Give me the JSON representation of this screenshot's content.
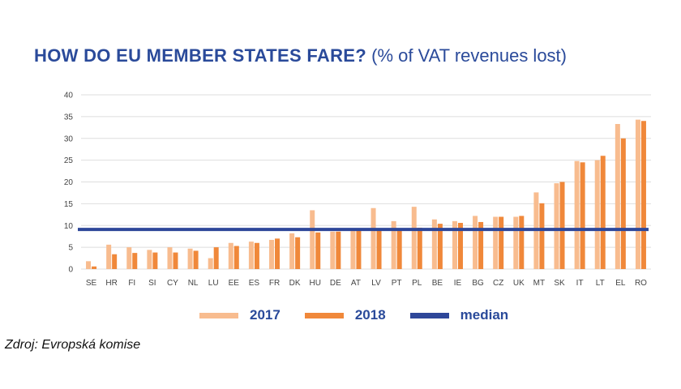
{
  "title": {
    "bold": "HOW DO EU MEMBER STATES FARE?",
    "rest": "(% of VAT revenues lost)"
  },
  "chart_data": {
    "type": "bar",
    "title": "HOW DO EU MEMBER STATES FARE? (% of VAT revenues lost)",
    "xlabel": "",
    "ylabel": "",
    "ylim": [
      0,
      40
    ],
    "yticks": [
      0,
      5,
      10,
      15,
      20,
      25,
      30,
      35,
      40
    ],
    "grid": true,
    "legend_position": "bottom",
    "categories": [
      "SE",
      "HR",
      "FI",
      "SI",
      "CY",
      "NL",
      "LU",
      "EE",
      "ES",
      "FR",
      "DK",
      "HU",
      "DE",
      "AT",
      "LV",
      "PT",
      "PL",
      "BE",
      "IE",
      "BG",
      "CZ",
      "UK",
      "MT",
      "SK",
      "IT",
      "LT",
      "EL",
      "RO"
    ],
    "series": [
      {
        "name": "2017",
        "color": "#f8bc8f",
        "values": [
          1.8,
          5.6,
          5.0,
          4.4,
          5.0,
          4.7,
          2.5,
          6.0,
          6.3,
          6.7,
          8.2,
          13.5,
          8.6,
          8.8,
          14.0,
          11.0,
          14.3,
          11.4,
          11.0,
          12.2,
          12.0,
          12.0,
          17.6,
          19.7,
          24.8,
          25.0,
          33.3,
          34.3
        ]
      },
      {
        "name": "2018",
        "color": "#f0883a",
        "values": [
          0.6,
          3.4,
          3.7,
          3.8,
          3.8,
          4.2,
          5.0,
          5.3,
          6.0,
          7.0,
          7.3,
          8.4,
          8.6,
          8.9,
          9.0,
          9.2,
          9.5,
          10.4,
          10.6,
          10.8,
          12.0,
          12.2,
          15.1,
          20.0,
          24.5,
          26.0,
          30.0,
          34.0
        ]
      }
    ],
    "median": {
      "name": "median",
      "value": 9.1,
      "color": "#2e4799"
    }
  },
  "legend": [
    {
      "label": "2017",
      "color": "#f8bc8f"
    },
    {
      "label": "2018",
      "color": "#f0883a"
    },
    {
      "label": "median",
      "color": "#2e4799"
    }
  ],
  "source": "Zdroj: Evropská komise"
}
